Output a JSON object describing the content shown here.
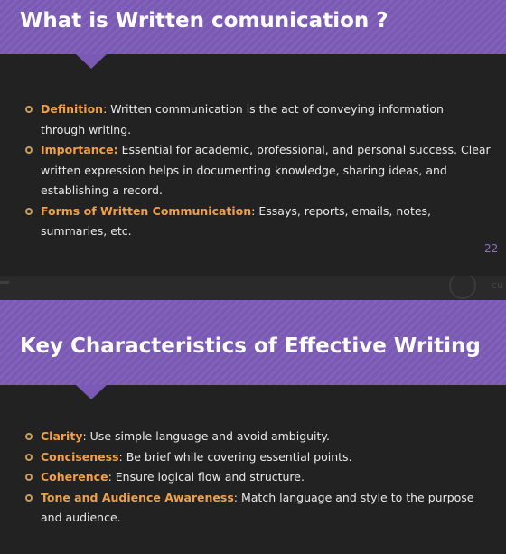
{
  "slide1": {
    "title": "What is Written comunication ?",
    "page_number": "22",
    "points": [
      {
        "term": "Definition",
        "sep": ": ",
        "text": "Written communication is the act of conveying information through writing."
      },
      {
        "term": "Importance:",
        "sep": " ",
        "text": "Essential for academic, professional, and personal success. Clear written expression helps in documenting knowledge, sharing ideas, and establishing a record."
      },
      {
        "term": "Forms of Written Communication",
        "sep": ": ",
        "text": "Essays, reports, emails, notes, summaries, etc."
      }
    ]
  },
  "slide2": {
    "title": "Key Characteristics of Effective Writing",
    "points": [
      {
        "term": "Clarity",
        "sep": ": ",
        "text": "Use simple language and avoid ambiguity."
      },
      {
        "term": "Conciseness",
        "sep": ": ",
        "text": "Be brief while covering essential points."
      },
      {
        "term": "Coherence",
        "sep": ": ",
        "text": "Ensure logical flow and structure."
      },
      {
        "term": "Tone and Audience Awareness",
        "sep": ": ",
        "text": "Match language and style to the purpose and audience."
      }
    ]
  },
  "colors": {
    "banner": "#7a5ab4",
    "background": "#222222",
    "term": "#f0a048",
    "bullet": "#c89c5a",
    "page_number": "#8a70c8"
  }
}
